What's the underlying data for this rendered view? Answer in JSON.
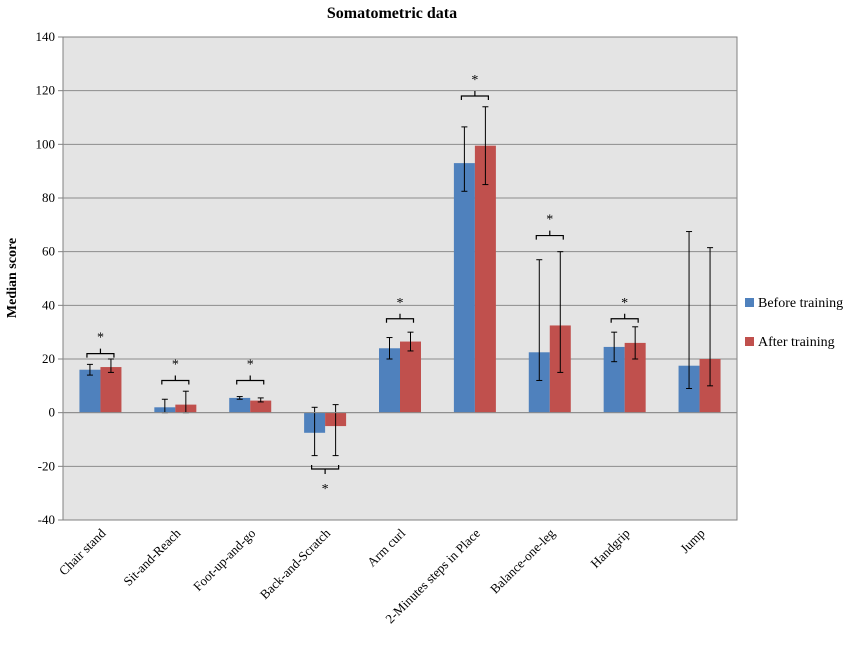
{
  "chart_data": {
    "type": "bar",
    "title": "Somatometric data",
    "ylabel": "Median score",
    "xlabel": "",
    "ylim": [
      -40,
      140
    ],
    "ytick_step": 20,
    "grid": true,
    "legend_position": "right",
    "categories": [
      "Chair stand",
      "Sit-and-Reach",
      "Foot-up-and-go",
      "Back-and-Scratch",
      "Arm curl",
      "2-Minutes steps in Place",
      "Balance-one-leg",
      "Handgrip",
      "Jump"
    ],
    "series": [
      {
        "name": "Before training",
        "color": "#4f81bd",
        "values": [
          16,
          2,
          5.5,
          -7.5,
          24,
          93,
          22.5,
          24.5,
          17.5
        ],
        "error_low": [
          14,
          0,
          5,
          -16,
          20,
          82.5,
          12,
          19,
          9
        ],
        "error_high": [
          18,
          5,
          6,
          2,
          28,
          106.5,
          57,
          30,
          67.5
        ]
      },
      {
        "name": "After training",
        "color": "#c0504d",
        "values": [
          17,
          3,
          4.5,
          -5,
          26.5,
          99.5,
          32.5,
          26,
          20
        ],
        "error_low": [
          15,
          0,
          4,
          -16,
          23,
          85,
          15,
          20,
          10
        ],
        "error_high": [
          20,
          8,
          5.5,
          3,
          30,
          114,
          60,
          32,
          61.5
        ]
      }
    ],
    "significance": [
      {
        "category": "Chair stand",
        "label": "*",
        "bracket_value": 22,
        "side": "above"
      },
      {
        "category": "Sit-and-Reach",
        "label": "*",
        "bracket_value": 12,
        "side": "above"
      },
      {
        "category": "Foot-up-and-go",
        "label": "*",
        "bracket_value": 12,
        "side": "above"
      },
      {
        "category": "Back-and-Scratch",
        "label": "*",
        "bracket_value": -21,
        "side": "below"
      },
      {
        "category": "Arm curl",
        "label": "*",
        "bracket_value": 35,
        "side": "above"
      },
      {
        "category": "2-Minutes steps in Place",
        "label": "*",
        "bracket_value": 118,
        "side": "above"
      },
      {
        "category": "Balance-one-leg",
        "label": "*",
        "bracket_value": 66,
        "side": "above"
      },
      {
        "category": "Handgrip",
        "label": "*",
        "bracket_value": 35,
        "side": "above"
      }
    ]
  }
}
